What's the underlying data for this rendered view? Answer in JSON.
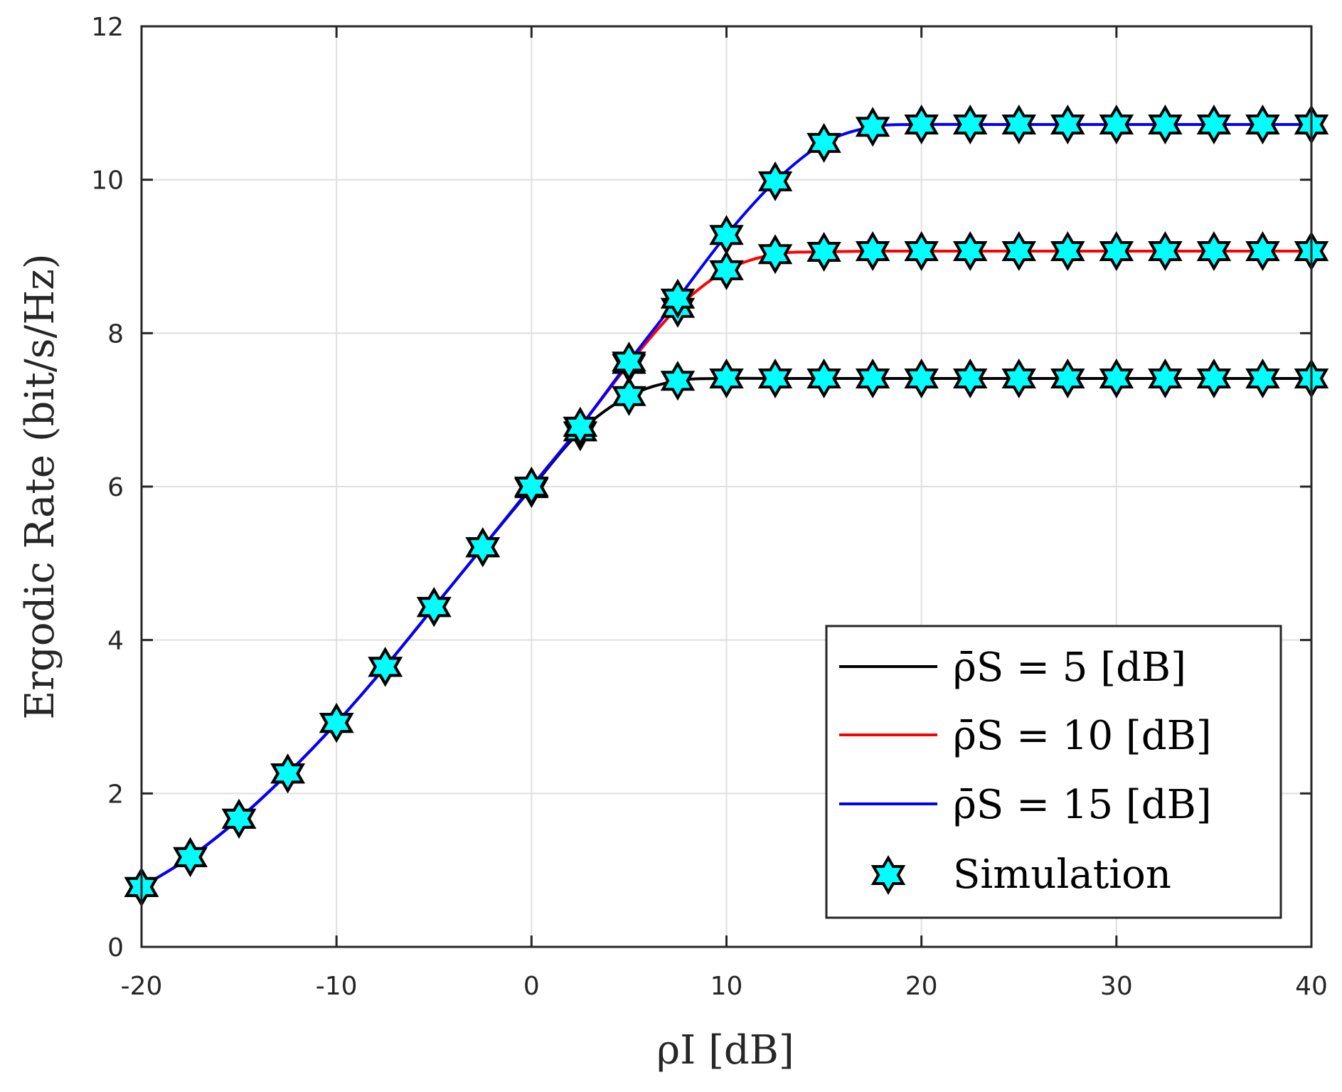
{
  "chart_data": {
    "type": "line",
    "title": "",
    "xlabel": "ρI [dB]",
    "ylabel": "Ergodic Rate (bit/s/Hz)",
    "xlim": [
      -20,
      40
    ],
    "ylim": [
      0,
      12
    ],
    "x_ticks": [
      "-20",
      "-10",
      "0",
      "10",
      "20",
      "30",
      "40"
    ],
    "y_ticks": [
      "0",
      "2",
      "4",
      "6",
      "8",
      "10",
      "12"
    ],
    "grid": true,
    "legend_position": "bottom-right",
    "x": [
      -20,
      -17.5,
      -15,
      -12.5,
      -10,
      -7.5,
      -5,
      -2.5,
      0,
      2.5,
      5,
      7.5,
      10,
      12.5,
      15,
      17.5,
      20,
      22.5,
      25,
      27.5,
      30,
      32.5,
      35,
      37.5,
      40
    ],
    "series": [
      {
        "name": "ρ̄S = 5 [dB]",
        "color": "#000000",
        "values": [
          0.78,
          1.17,
          1.67,
          2.26,
          2.92,
          3.65,
          4.43,
          5.21,
          5.98,
          6.72,
          7.18,
          7.38,
          7.41,
          7.41,
          7.41,
          7.41,
          7.41,
          7.41,
          7.41,
          7.41,
          7.41,
          7.41,
          7.41,
          7.41,
          7.41
        ]
      },
      {
        "name": "ρ̄S = 10 [dB]",
        "color": "#ff0000",
        "values": [
          0.78,
          1.17,
          1.67,
          2.26,
          2.92,
          3.65,
          4.43,
          5.21,
          6.0,
          6.78,
          7.6,
          8.33,
          8.82,
          9.03,
          9.06,
          9.07,
          9.07,
          9.07,
          9.07,
          9.07,
          9.07,
          9.07,
          9.07,
          9.07,
          9.07
        ]
      },
      {
        "name": "ρ̄S = 15 [dB]",
        "color": "#0000ff",
        "values": [
          0.78,
          1.17,
          1.67,
          2.26,
          2.92,
          3.65,
          4.43,
          5.21,
          6.0,
          6.78,
          7.63,
          8.45,
          9.28,
          9.98,
          10.48,
          10.69,
          10.72,
          10.72,
          10.72,
          10.72,
          10.72,
          10.72,
          10.72,
          10.72,
          10.72
        ]
      }
    ],
    "simulation": {
      "name": "Simulation",
      "marker": "hexagram",
      "face_color": "#00ffff",
      "edge_color": "#000000"
    }
  }
}
